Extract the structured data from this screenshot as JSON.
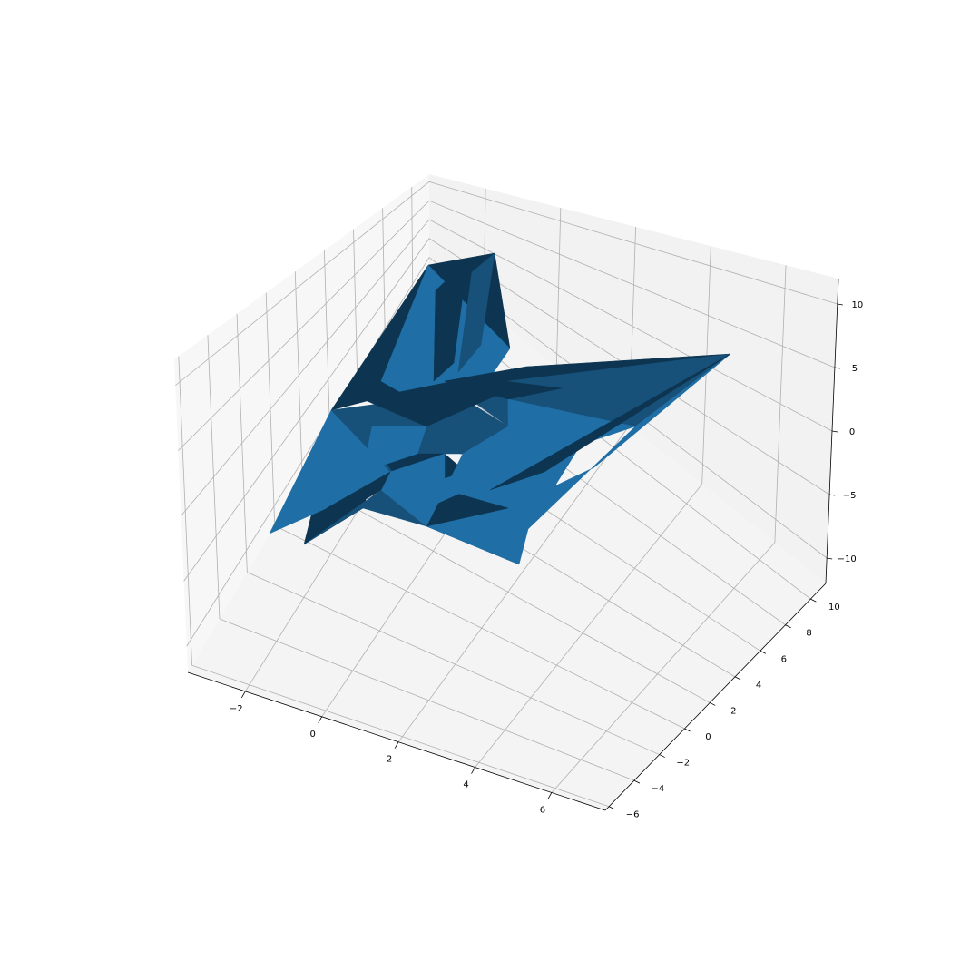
{
  "chart_data": {
    "type": "surface3d",
    "title": "",
    "xlabel": "",
    "ylabel": "",
    "zlabel": "",
    "grid": true,
    "x_ticks": [
      -2,
      0,
      2,
      4,
      6
    ],
    "y_ticks": [
      -6,
      -4,
      -2,
      0,
      2,
      4,
      6,
      8,
      10
    ],
    "z_ticks": [
      -10,
      -5,
      0,
      5,
      10
    ],
    "tick_labels": {
      "x": [
        "−2",
        "0",
        "2",
        "4",
        "6"
      ],
      "y": [
        "−6",
        "−4",
        "−2",
        "0",
        "2",
        "4",
        "6",
        "8",
        "10"
      ],
      "z": [
        "−10",
        "−5",
        "0",
        "5",
        "10"
      ]
    },
    "xlim": [
      -3.5,
      7.4
    ],
    "ylim": [
      -6.3,
      11.2
    ],
    "zlim": [
      -12,
      12
    ],
    "colors": {
      "surface_light": "#1f6ea5",
      "surface_mid": "#17517a",
      "surface_dark": "#0d3551",
      "pane_back": "#f2f2f2",
      "pane_side": "#f7f7f7",
      "pane_floor": "#f4f4f4"
    }
  }
}
